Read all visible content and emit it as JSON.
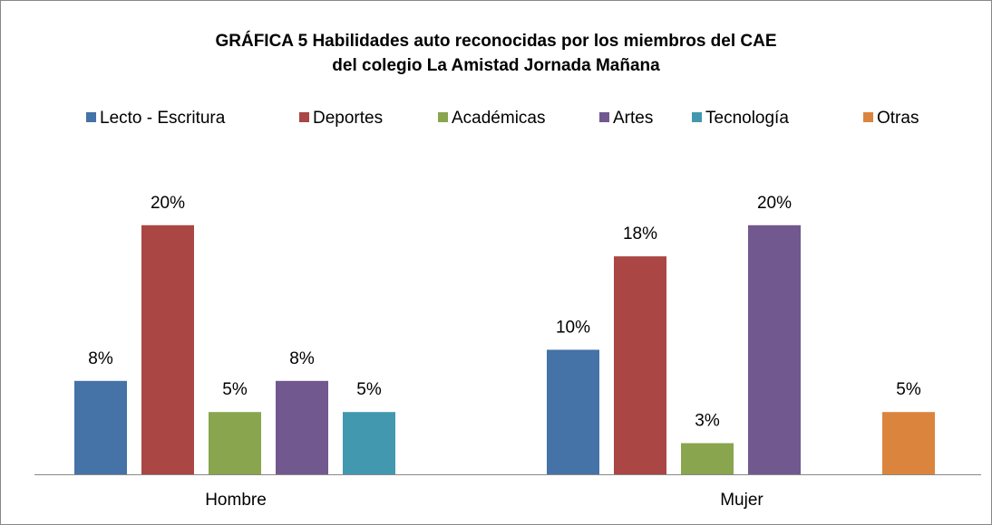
{
  "chart_data": {
    "type": "bar",
    "title": [
      "GRÁFICA 5 Habilidades auto reconocidas por los miembros del CAE",
      "del colegio La Amistad Jornada Mañana"
    ],
    "categories": [
      "Hombre",
      "Mujer"
    ],
    "series": [
      {
        "name": "Lecto - Escritura",
        "color": "#4572a7",
        "values": [
          7.5,
          10
        ],
        "value_labels": [
          "8%",
          "10%"
        ]
      },
      {
        "name": "Deportes",
        "color": "#aa4643",
        "values": [
          20,
          17.5
        ],
        "value_labels": [
          "20%",
          "18%"
        ]
      },
      {
        "name": "Académicas",
        "color": "#89a54e",
        "values": [
          5,
          2.5
        ],
        "value_labels": [
          "5%",
          "3%"
        ]
      },
      {
        "name": "Artes",
        "color": "#71588f",
        "values": [
          7.5,
          20
        ],
        "value_labels": [
          "8%",
          "20%"
        ]
      },
      {
        "name": "Tecnología",
        "color": "#4198af",
        "values": [
          5,
          null
        ],
        "value_labels": [
          "5%",
          null
        ]
      },
      {
        "name": "Otras",
        "color": "#db843d",
        "values": [
          null,
          5
        ],
        "value_labels": [
          null,
          "5%"
        ]
      }
    ],
    "ylim": [
      0,
      25
    ],
    "legend": "top"
  }
}
